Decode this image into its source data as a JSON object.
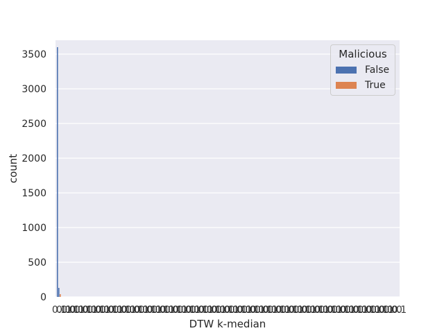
{
  "chart_data": {
    "type": "bar",
    "xlabel": "DTW k-median",
    "ylabel": "count",
    "ylim": [
      0,
      3700
    ],
    "y_ticks": [
      0,
      500,
      1000,
      1500,
      2000,
      2500,
      3000,
      3500
    ],
    "x_tick_labels_overlapping": true,
    "grid": true,
    "legend": {
      "title": "Malicious",
      "placement": "top-right",
      "entries": [
        "False",
        "True"
      ]
    },
    "series": [
      {
        "name": "False",
        "color": "#4c72b0"
      },
      {
        "name": "True",
        "color": "#dd8452"
      }
    ],
    "bars": [
      {
        "series": "False",
        "value": 3600
      },
      {
        "series": "False",
        "value": 130
      },
      {
        "series": "True",
        "value": 40
      }
    ]
  }
}
